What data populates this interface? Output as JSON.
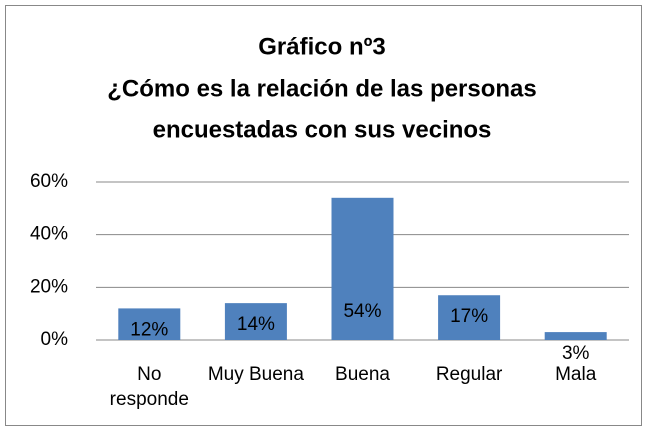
{
  "chart_data": {
    "type": "bar",
    "title": [
      "Gráfico nº3",
      "¿Cómo es la relación de las personas",
      "encuestadas con sus vecinos"
    ],
    "categories": [
      "No responde",
      "Muy Buena",
      "Buena",
      "Regular",
      "Mala"
    ],
    "values": [
      12,
      14,
      54,
      17,
      3
    ],
    "value_labels": [
      "12%",
      "14%",
      "54%",
      "17%",
      "3%"
    ],
    "color": "#4f81bd",
    "ylim": [
      0,
      60
    ],
    "yticks": [
      {
        "value": 0,
        "label": "0%"
      },
      {
        "value": 20,
        "label": "20%"
      },
      {
        "value": 40,
        "label": "40%"
      },
      {
        "value": 60,
        "label": "60%"
      }
    ],
    "grid": true
  }
}
